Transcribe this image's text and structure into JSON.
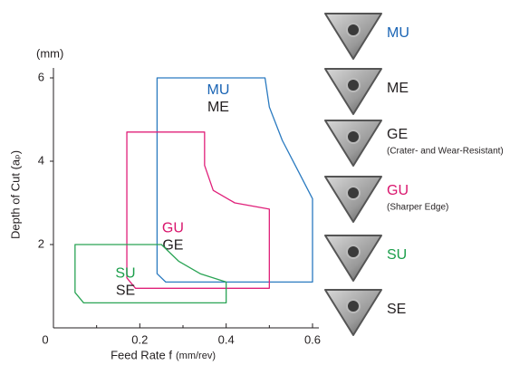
{
  "chart_data": {
    "type": "region",
    "y_unit": "(mm)",
    "y_label": "Depth of Cut (aₚ)",
    "x_label": "Feed Rate f",
    "x_unit": "(mm/rev)",
    "xlim": [
      0,
      0.6
    ],
    "ylim": [
      0,
      6.5
    ],
    "xticks": [
      0,
      0.2,
      0.4,
      0.6
    ],
    "xminorticks": [
      0.1,
      0.3,
      0.5
    ],
    "yticks": [
      2,
      4,
      6
    ],
    "series": [
      {
        "labels": [
          {
            "text": "MU",
            "color": "#1a64b4"
          },
          {
            "text": "ME",
            "color": "#231f20"
          }
        ],
        "color": "#2a7ac0",
        "x": [
          0.24,
          0.49,
          0.5,
          0.53,
          0.56,
          0.6,
          0.6,
          0.26,
          0.24
        ],
        "y": [
          6,
          6,
          5.3,
          4.5,
          3.9,
          3.1,
          1.1,
          1.1,
          1.3
        ]
      },
      {
        "labels": [
          {
            "text": "GU",
            "color": "#d9156d"
          },
          {
            "text": "GE",
            "color": "#231f20"
          }
        ],
        "color": "#e0207a",
        "x": [
          0.17,
          0.35,
          0.35,
          0.37,
          0.42,
          0.5,
          0.5,
          0.19,
          0.17
        ],
        "y": [
          4.7,
          4.7,
          3.9,
          3.3,
          3.0,
          2.85,
          0.95,
          0.95,
          1.2
        ]
      },
      {
        "labels": [
          {
            "text": "SU",
            "color": "#1a9e4a"
          },
          {
            "text": "SE",
            "color": "#231f20"
          }
        ],
        "color": "#2aa455",
        "x": [
          0.05,
          0.25,
          0.29,
          0.34,
          0.4,
          0.4,
          0.07,
          0.05
        ],
        "y": [
          2,
          2,
          1.6,
          1.3,
          1.1,
          0.6,
          0.6,
          0.85
        ]
      }
    ],
    "inserts": [
      {
        "label": "MU",
        "color": "#1a64b4"
      },
      {
        "label": "ME",
        "color": "#231f20"
      },
      {
        "label": "GE",
        "color": "#231f20",
        "note": "(Crater- and Wear-Resistant)"
      },
      {
        "label": "GU",
        "color": "#d9156d",
        "note": "(Sharper Edge)"
      },
      {
        "label": "SU",
        "color": "#1a9e4a"
      },
      {
        "label": "SE",
        "color": "#231f20"
      }
    ]
  }
}
